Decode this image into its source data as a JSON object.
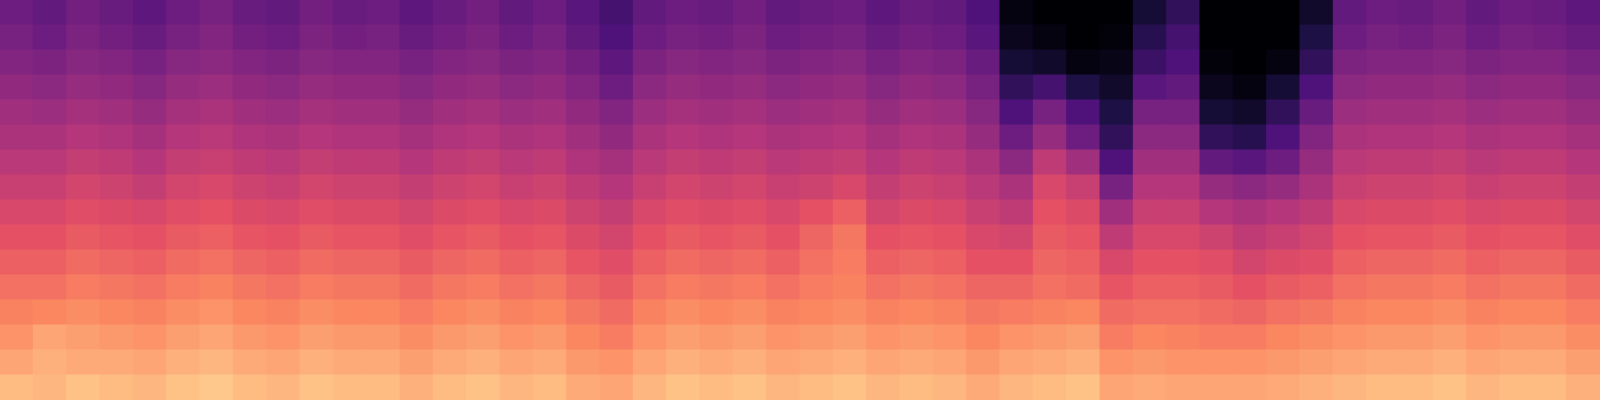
{
  "chart_data": {
    "type": "heatmap",
    "tick_labels": false,
    "zlim": [
      -80,
      0
    ],
    "cells": [
      [
        -54,
        -56,
        -53,
        -55,
        -57,
        -54,
        -52,
        -55,
        -56,
        -53,
        -55,
        -54,
        -57,
        -55,
        -53,
        -56,
        -54,
        -58,
        -62,
        -56,
        -54,
        -55,
        -53,
        -56,
        -55,
        -54,
        -57,
        -55,
        -56,
        -60,
        -78,
        -80,
        -80,
        -80,
        -72,
        -66,
        -80,
        -80,
        -80,
        -74,
        -56,
        -54,
        -55,
        -53,
        -56,
        -54,
        -55,
        -57
      ],
      [
        -52,
        -54,
        -51,
        -53,
        -55,
        -52,
        -50,
        -53,
        -54,
        -51,
        -53,
        -52,
        -55,
        -53,
        -51,
        -54,
        -52,
        -56,
        -60,
        -54,
        -52,
        -53,
        -51,
        -54,
        -53,
        -52,
        -55,
        -53,
        -54,
        -58,
        -76,
        -78,
        -80,
        -79,
        -68,
        -62,
        -80,
        -80,
        -80,
        -70,
        -54,
        -52,
        -53,
        -51,
        -54,
        -52,
        -53,
        -55
      ],
      [
        -50,
        -51,
        -49,
        -50,
        -52,
        -49,
        -48,
        -50,
        -51,
        -49,
        -50,
        -50,
        -52,
        -50,
        -49,
        -51,
        -50,
        -53,
        -57,
        -51,
        -49,
        -50,
        -49,
        -51,
        -50,
        -49,
        -52,
        -50,
        -51,
        -55,
        -72,
        -74,
        -78,
        -77,
        -64,
        -60,
        -79,
        -80,
        -78,
        -66,
        -51,
        -50,
        -50,
        -49,
        -51,
        -50,
        -50,
        -52
      ],
      [
        -47,
        -48,
        -46,
        -47,
        -49,
        -46,
        -45,
        -47,
        -48,
        -46,
        -47,
        -47,
        -49,
        -47,
        -46,
        -48,
        -47,
        -50,
        -54,
        -48,
        -46,
        -47,
        -46,
        -48,
        -47,
        -46,
        -49,
        -47,
        -48,
        -52,
        -66,
        -62,
        -70,
        -74,
        -58,
        -56,
        -76,
        -78,
        -72,
        -60,
        -48,
        -47,
        -47,
        -46,
        -48,
        -47,
        -47,
        -49
      ],
      [
        -44,
        -45,
        -43,
        -44,
        -46,
        -43,
        -42,
        -44,
        -45,
        -43,
        -44,
        -44,
        -46,
        -44,
        -43,
        -45,
        -44,
        -47,
        -50,
        -45,
        -43,
        -44,
        -43,
        -45,
        -44,
        -43,
        -46,
        -44,
        -45,
        -49,
        -60,
        -52,
        -60,
        -70,
        -52,
        -52,
        -72,
        -74,
        -66,
        -55,
        -45,
        -44,
        -44,
        -43,
        -45,
        -44,
        -44,
        -46
      ],
      [
        -42,
        -42,
        -40,
        -41,
        -43,
        -40,
        -39,
        -41,
        -42,
        -40,
        -41,
        -41,
        -43,
        -41,
        -40,
        -42,
        -41,
        -44,
        -47,
        -42,
        -40,
        -41,
        -40,
        -42,
        -41,
        -40,
        -43,
        -41,
        -42,
        -46,
        -54,
        -46,
        -54,
        -66,
        -48,
        -48,
        -66,
        -68,
        -60,
        -50,
        -42,
        -41,
        -41,
        -40,
        -42,
        -41,
        -41,
        -43
      ],
      [
        -39,
        -39,
        -37,
        -38,
        -40,
        -37,
        -36,
        -38,
        -39,
        -37,
        -38,
        -38,
        -40,
        -38,
        -37,
        -39,
        -38,
        -41,
        -43,
        -39,
        -37,
        -38,
        -37,
        -39,
        -38,
        -37,
        -40,
        -38,
        -39,
        -42,
        -48,
        -38,
        -44,
        -60,
        -44,
        -44,
        -56,
        -58,
        -54,
        -46,
        -39,
        -38,
        -38,
        -37,
        -39,
        -38,
        -38,
        -40
      ],
      [
        -36,
        -36,
        -34,
        -35,
        -37,
        -34,
        -33,
        -35,
        -36,
        -34,
        -35,
        -35,
        -37,
        -35,
        -34,
        -36,
        -35,
        -38,
        -40,
        -36,
        -34,
        -35,
        -34,
        -36,
        -35,
        -33,
        -37,
        -35,
        -36,
        -39,
        -42,
        -33,
        -36,
        -52,
        -40,
        -40,
        -46,
        -48,
        -46,
        -42,
        -36,
        -35,
        -35,
        -34,
        -36,
        -35,
        -35,
        -37
      ],
      [
        -33,
        -33,
        -31,
        -32,
        -33,
        -31,
        -30,
        -32,
        -33,
        -31,
        -32,
        -32,
        -34,
        -32,
        -31,
        -33,
        -32,
        -35,
        -37,
        -33,
        -31,
        -32,
        -31,
        -33,
        -30,
        -27,
        -34,
        -32,
        -33,
        -36,
        -38,
        -30,
        -32,
        -44,
        -36,
        -36,
        -40,
        -42,
        -40,
        -38,
        -33,
        -32,
        -32,
        -31,
        -33,
        -32,
        -32,
        -34
      ],
      [
        -30,
        -30,
        -28,
        -29,
        -30,
        -28,
        -27,
        -29,
        -30,
        -28,
        -29,
        -29,
        -31,
        -29,
        -28,
        -30,
        -29,
        -32,
        -34,
        -30,
        -28,
        -29,
        -28,
        -30,
        -26,
        -23,
        -30,
        -29,
        -30,
        -33,
        -34,
        -28,
        -29,
        -38,
        -33,
        -33,
        -35,
        -38,
        -36,
        -34,
        -30,
        -29,
        -29,
        -28,
        -30,
        -29,
        -29,
        -31
      ],
      [
        -27,
        -27,
        -25,
        -26,
        -27,
        -25,
        -24,
        -26,
        -27,
        -25,
        -26,
        -26,
        -28,
        -26,
        -25,
        -27,
        -26,
        -29,
        -31,
        -27,
        -25,
        -26,
        -25,
        -27,
        -24,
        -22,
        -27,
        -26,
        -27,
        -30,
        -30,
        -26,
        -27,
        -33,
        -30,
        -30,
        -31,
        -34,
        -32,
        -31,
        -27,
        -26,
        -26,
        -25,
        -27,
        -26,
        -26,
        -28
      ],
      [
        -24,
        -24,
        -22,
        -23,
        -24,
        -22,
        -21,
        -23,
        -24,
        -22,
        -23,
        -23,
        -25,
        -23,
        -22,
        -24,
        -23,
        -26,
        -28,
        -24,
        -22,
        -23,
        -22,
        -24,
        -22,
        -21,
        -24,
        -23,
        -24,
        -26,
        -26,
        -24,
        -25,
        -29,
        -27,
        -27,
        -28,
        -30,
        -28,
        -27,
        -24,
        -23,
        -23,
        -22,
        -24,
        -23,
        -23,
        -25
      ],
      [
        -21,
        -20,
        -19,
        -20,
        -21,
        -19,
        -18,
        -20,
        -21,
        -19,
        -20,
        -20,
        -22,
        -20,
        -19,
        -21,
        -20,
        -23,
        -25,
        -21,
        -19,
        -20,
        -19,
        -21,
        -20,
        -19,
        -21,
        -20,
        -21,
        -23,
        -22,
        -21,
        -20,
        -25,
        -24,
        -24,
        -25,
        -26,
        -24,
        -23,
        -21,
        -20,
        -20,
        -19,
        -21,
        -20,
        -20,
        -22
      ],
      [
        -18,
        -15,
        -16,
        -17,
        -18,
        -16,
        -15,
        -17,
        -18,
        -16,
        -17,
        -17,
        -19,
        -17,
        -16,
        -18,
        -17,
        -20,
        -22,
        -18,
        -16,
        -17,
        -16,
        -18,
        -17,
        -16,
        -18,
        -17,
        -18,
        -20,
        -18,
        -17,
        -16,
        -22,
        -20,
        -21,
        -22,
        -22,
        -20,
        -19,
        -18,
        -17,
        -17,
        -16,
        -18,
        -17,
        -17,
        -19
      ],
      [
        -15,
        -13,
        -14,
        -14,
        -15,
        -13,
        -12,
        -14,
        -15,
        -13,
        -14,
        -14,
        -16,
        -14,
        -13,
        -15,
        -14,
        -17,
        -18,
        -15,
        -13,
        -14,
        -13,
        -15,
        -14,
        -13,
        -15,
        -14,
        -15,
        -17,
        -15,
        -14,
        -13,
        -18,
        -17,
        -18,
        -18,
        -18,
        -17,
        -16,
        -15,
        -14,
        -14,
        -13,
        -15,
        -14,
        -14,
        -16
      ],
      [
        -11,
        -12,
        -10,
        -11,
        -12,
        -10,
        -9,
        -11,
        -12,
        -10,
        -11,
        -11,
        -13,
        -11,
        -10,
        -12,
        -11,
        -14,
        -15,
        -12,
        -10,
        -11,
        -10,
        -12,
        -11,
        -10,
        -12,
        -11,
        -12,
        -14,
        -12,
        -11,
        -10,
        -15,
        -14,
        -15,
        -15,
        -15,
        -14,
        -13,
        -12,
        -11,
        -11,
        -10,
        -12,
        -11,
        -11,
        -13
      ]
    ]
  }
}
